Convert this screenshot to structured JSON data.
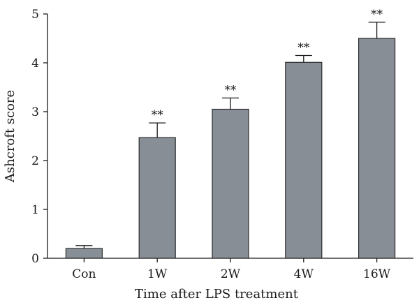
{
  "chart_data": {
    "type": "bar",
    "categories": [
      "Con",
      "1W",
      "2W",
      "4W",
      "16W"
    ],
    "values": [
      0.2,
      2.47,
      3.05,
      4.01,
      4.5
    ],
    "errors": [
      0.06,
      0.3,
      0.23,
      0.14,
      0.33
    ],
    "significance": [
      "",
      "**",
      "**",
      "**",
      "**"
    ],
    "xlabel": "Time after LPS treatment",
    "ylabel": "Ashcroft score",
    "ylim": [
      0,
      5
    ],
    "yticks": [
      0,
      1,
      2,
      3,
      4,
      5
    ],
    "bar_color": "#878e96",
    "grid": false,
    "legend": "none"
  }
}
